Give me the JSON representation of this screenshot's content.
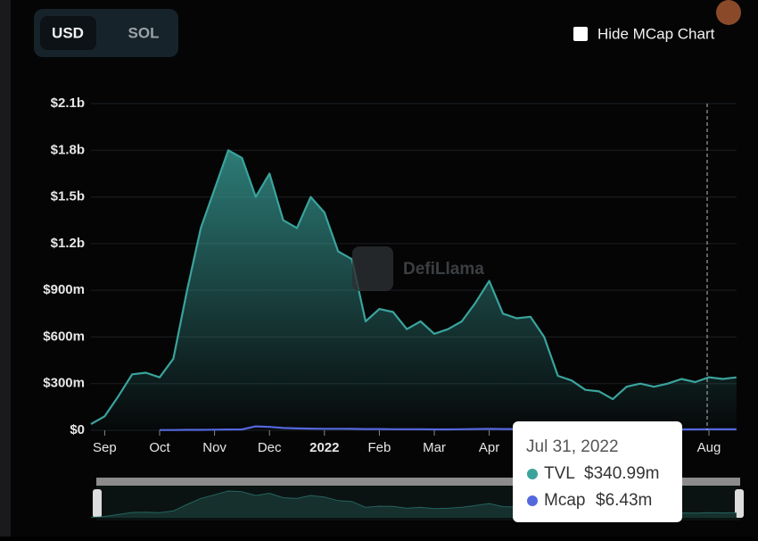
{
  "ui": {
    "currency_options": [
      "USD",
      "SOL"
    ],
    "checkbox_label": "Hide MCap Chart",
    "watermark": "DefiLlama"
  },
  "chart_data": {
    "type": "area",
    "categories": [
      null,
      "Sep",
      null,
      null,
      null,
      "Oct",
      null,
      null,
      null,
      "Nov",
      null,
      null,
      null,
      "Dec",
      null,
      null,
      null,
      "2022",
      null,
      null,
      null,
      "Feb",
      null,
      null,
      null,
      "Mar",
      null,
      null,
      null,
      "Apr",
      null,
      null,
      null,
      null,
      null,
      null,
      null,
      null,
      null,
      null,
      null,
      null,
      null,
      null,
      null,
      "Aug",
      null,
      null
    ],
    "series": [
      {
        "name": "TVL",
        "color": "#3aa39c",
        "values": [
          40000000,
          90000000,
          220000000,
          360000000,
          370000000,
          340000000,
          460000000,
          900000000,
          1300000000,
          1550000000,
          1800000000,
          1750000000,
          1500000000,
          1650000000,
          1350000000,
          1300000000,
          1500000000,
          1400000000,
          1150000000,
          1100000000,
          700000000,
          780000000,
          760000000,
          650000000,
          700000000,
          620000000,
          650000000,
          700000000,
          820000000,
          960000000,
          750000000,
          720000000,
          730000000,
          600000000,
          350000000,
          320000000,
          260000000,
          250000000,
          200000000,
          280000000,
          300000000,
          280000000,
          300000000,
          330000000,
          310000000,
          340990000,
          330000000,
          340000000
        ]
      },
      {
        "name": "Mcap",
        "color": "#5468de",
        "values": [
          null,
          null,
          null,
          null,
          null,
          2000000,
          2000000,
          3000000,
          3000000,
          4000000,
          5000000,
          6000000,
          25000000,
          22000000,
          15000000,
          12000000,
          11000000,
          10000000,
          10000000,
          9000000,
          8000000,
          8000000,
          7000000,
          7000000,
          7000000,
          6000000,
          6000000,
          7000000,
          8000000,
          9000000,
          8000000,
          8000000,
          7000000,
          7000000,
          6000000,
          6000000,
          6000000,
          6000000,
          6000000,
          6000000,
          6000000,
          6000000,
          6000000,
          6000000,
          6000000,
          6430000,
          6400000,
          6400000
        ]
      }
    ],
    "ylim": [
      0,
      2100000000
    ],
    "yticks": [
      {
        "value": 0,
        "label": "$0"
      },
      {
        "value": 300000000,
        "label": "$300m"
      },
      {
        "value": 600000000,
        "label": "$600m"
      },
      {
        "value": 900000000,
        "label": "$900m"
      },
      {
        "value": 1200000000,
        "label": "$1.2b"
      },
      {
        "value": 1500000000,
        "label": "$1.5b"
      },
      {
        "value": 1800000000,
        "label": "$1.8b"
      },
      {
        "value": 2100000000,
        "label": "$2.1b"
      }
    ],
    "grid": true,
    "tooltip": {
      "title": "Jul 31, 2022",
      "value_labels": [
        "$340.99m",
        "$6.43m"
      ]
    }
  }
}
